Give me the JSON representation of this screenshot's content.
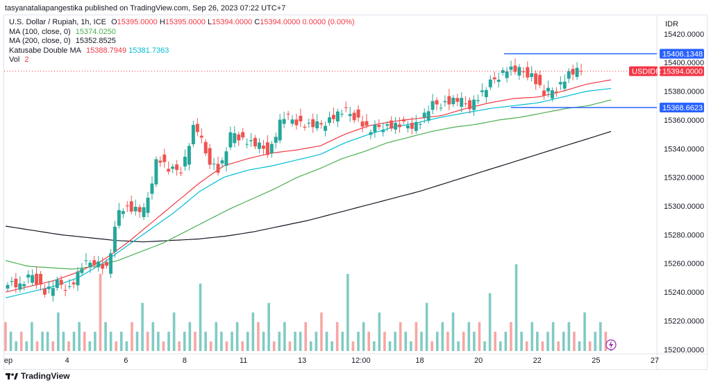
{
  "header": {
    "text": "tasyanataliapangestika published on TradingView.com, Sep 26, 2023 07:22 UTC+7"
  },
  "legend": {
    "symbol": "U.S. Dollar / Rupiah, 1h, ICE",
    "ohlc": {
      "o_label": "O",
      "o": "15395.0000",
      "h_label": "H",
      "h": "15395.0000",
      "l_label": "L",
      "l": "15394.0000",
      "c_label": "C",
      "c": "15394.0000",
      "chg": "0.0000 (0.00%)"
    },
    "ma100": {
      "label": "MA (100, close, 0)",
      "value": "15374.0250"
    },
    "ma200": {
      "label": "MA (200, close, 0)",
      "value": "15352.8525"
    },
    "katusabe": {
      "label": "Katusabe Double MA",
      "v1": "15388.7949",
      "v2": "15381.7363"
    },
    "vol": {
      "label": "Vol",
      "value": "2"
    }
  },
  "footer": {
    "brand": "TradingView"
  },
  "chart_data": {
    "type": "candlestick",
    "symbol_code": "USDIDR",
    "currency_label": "IDR",
    "y_ticks": [
      "15420.0000",
      "15400.0000",
      "15380.0000",
      "15360.0000",
      "15340.0000",
      "15320.0000",
      "15300.0000",
      "15280.0000",
      "15260.0000",
      "15240.0000",
      "15220.0000",
      "15200.0000"
    ],
    "ylim": [
      15197,
      15433
    ],
    "x_ticks": [
      "ep",
      "4",
      "6",
      "8",
      "11",
      "13",
      "12:00",
      "18",
      "20",
      "22",
      "25",
      "27"
    ],
    "price_labels": {
      "upper": "15406.1348",
      "current": "15394.0000",
      "lower": "15368.6623"
    },
    "hlines": [
      15406.1348,
      15368.6623
    ],
    "colors": {
      "up": "#26a69a",
      "down": "#ef5350",
      "ma100": "#4caf50",
      "ma200": "#131722",
      "fast": "#f23645",
      "slow": "#22ab94",
      "slow2": "#00bcd4",
      "hline": "#2962ff",
      "vol_up": "#80cbc4",
      "vol_down": "#f7a6a4"
    },
    "candle_anchors": [
      15248,
      15244,
      15252,
      15240,
      15246,
      15243,
      15258,
      15262,
      15256,
      15300,
      15298,
      15296,
      15335,
      15324,
      15326,
      15358,
      15334,
      15324,
      15352,
      15346,
      15342,
      15338,
      15362,
      15360,
      15356,
      15356,
      15362,
      15366,
      15362,
      15352,
      15356,
      15356,
      15356,
      15358,
      15370,
      15372,
      15374,
      15370,
      15378,
      15388,
      15396,
      15394,
      15392,
      15378,
      15382,
      15392,
      15394
    ],
    "ma100_anchors": [
      15262,
      15258,
      15257,
      15256,
      15258,
      15262,
      15268,
      15274,
      15282,
      15290,
      15298,
      15305,
      15312,
      15320,
      15326,
      15333,
      15338,
      15344,
      15348,
      15352,
      15355,
      15357,
      15360,
      15362,
      15365,
      15368,
      15370,
      15374
    ],
    "ma200_anchors": [
      15286,
      15283,
      15280,
      15278,
      15276,
      15275,
      15276,
      15277,
      15279,
      15282,
      15286,
      15290,
      15295,
      15300,
      15305,
      15310,
      15316,
      15322,
      15328,
      15334,
      15340,
      15346,
      15352
    ],
    "fast_anchors": [
      15240,
      15244,
      15248,
      15254,
      15262,
      15274,
      15288,
      15302,
      15316,
      15328,
      15333,
      15337,
      15339,
      15342,
      15350,
      15356,
      15359,
      15361,
      15363,
      15368,
      15372,
      15375,
      15376,
      15380,
      15385,
      15388
    ],
    "slow_anchors": [
      15236,
      15240,
      15244,
      15250,
      15260,
      15272,
      15284,
      15296,
      15310,
      15320,
      15325,
      15328,
      15332,
      15336,
      15344,
      15350,
      15355,
      15358,
      15362,
      15365,
      15368,
      15370,
      15372,
      15376,
      15380,
      15382
    ],
    "volume_levels": [
      3,
      2,
      1,
      2,
      1,
      3,
      1,
      2,
      2,
      1,
      4,
      2,
      1,
      2,
      3,
      2,
      1,
      2,
      8,
      3,
      2,
      1,
      2,
      1,
      3,
      2,
      5,
      2,
      3,
      2,
      1,
      2,
      4,
      1,
      2,
      3,
      2,
      7,
      2,
      1,
      3,
      2,
      1,
      2,
      3,
      1,
      2,
      4,
      3,
      2,
      5,
      1,
      2,
      3,
      1,
      2,
      2,
      3,
      1,
      2,
      4,
      2,
      1,
      3,
      2,
      8,
      1,
      2,
      3,
      2,
      1,
      4,
      2,
      1,
      2,
      3,
      2,
      1,
      3,
      2,
      5,
      1,
      2,
      3,
      2,
      4,
      1,
      2,
      3,
      2,
      3,
      1,
      6,
      2,
      1,
      2,
      3,
      9,
      2,
      1,
      3,
      2,
      1,
      2,
      3,
      1,
      2,
      3,
      2,
      1,
      4,
      1,
      2,
      3,
      2,
      1
    ]
  }
}
